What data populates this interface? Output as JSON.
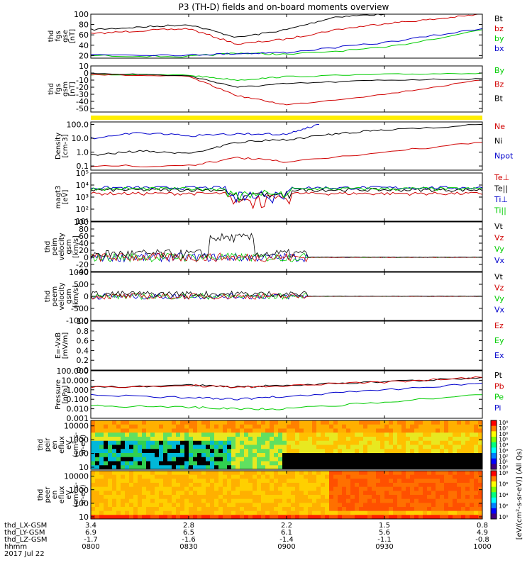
{
  "title": "P3 (TH-D) fields and on-board moments overview",
  "date_label": "2017 Jul 22",
  "panels": [
    {
      "id": "fgs-gse",
      "ylabel": [
        "thd",
        "fgs",
        "gse",
        "[nT]"
      ],
      "ticks": [
        "100",
        "80",
        "60",
        "40",
        "20"
      ],
      "legend": [
        {
          "label": "Bt",
          "color": "#000000"
        },
        {
          "label": "bz",
          "color": "#d00000"
        },
        {
          "label": "by",
          "color": "#00cc00"
        },
        {
          "label": "bx",
          "color": "#0000cc"
        }
      ]
    },
    {
      "id": "fgs-gsm",
      "ylabel": [
        "thd",
        "fgs",
        "gsm",
        "[nT]"
      ],
      "ticks": [
        "10",
        "0",
        "-10",
        "-20",
        "-30",
        "-40",
        "-50"
      ],
      "legend": [
        {
          "label": "By",
          "color": "#00cc00"
        },
        {
          "label": "Bz",
          "color": "#d00000"
        },
        {
          "label": "Bt",
          "color": "#000000"
        }
      ]
    },
    {
      "id": "density",
      "ylabel": [
        "Density",
        "[cm-3]"
      ],
      "ticks": [
        "100.0",
        "10.0",
        "1.0",
        "0.1"
      ],
      "legend": [
        {
          "label": "Ne",
          "color": "#d00000"
        },
        {
          "label": "Ni",
          "color": "#000000"
        },
        {
          "label": "Npot",
          "color": "#0000cc"
        }
      ]
    },
    {
      "id": "temperature",
      "ylabel": [
        "magt3",
        "[eV]"
      ],
      "ticks": [
        "10⁵",
        "10⁴",
        "10³",
        "10²",
        "10¹"
      ],
      "legend": [
        {
          "label": "Te⊥",
          "color": "#d00000"
        },
        {
          "label": "Te||",
          "color": "#000000"
        },
        {
          "label": "Ti⊥",
          "color": "#0000cc"
        },
        {
          "label": "Ti||",
          "color": "#00cc00"
        }
      ]
    },
    {
      "id": "ion-velocity",
      "ylabel": [
        "thd",
        "peim",
        "velocity",
        "gsm",
        "[km/s]"
      ],
      "ticks": [
        "100",
        "80",
        "60",
        "40",
        "20",
        "0",
        "-20",
        "-40"
      ],
      "legend": [
        {
          "label": "Vt",
          "color": "#000000"
        },
        {
          "label": "Vz",
          "color": "#d00000"
        },
        {
          "label": "Vy",
          "color": "#00cc00"
        },
        {
          "label": "Vx",
          "color": "#0000cc"
        }
      ]
    },
    {
      "id": "electron-velocity",
      "ylabel": [
        "thd",
        "peem",
        "velocity",
        "gsm",
        "[km/s]"
      ],
      "ticks": [
        "1000",
        "500",
        "0",
        "-500",
        "-1000"
      ],
      "legend": [
        {
          "label": "Vt",
          "color": "#000000"
        },
        {
          "label": "Vz",
          "color": "#d00000"
        },
        {
          "label": "Vy",
          "color": "#00cc00"
        },
        {
          "label": "Vx",
          "color": "#0000cc"
        }
      ]
    },
    {
      "id": "efield",
      "ylabel": [
        "E=-VxB",
        "[mV/m]"
      ],
      "ticks": [
        "1.0",
        "0.8",
        "0.6",
        "0.4",
        "0.2",
        "0.0"
      ],
      "legend": [
        {
          "label": "Ez",
          "color": "#d00000"
        },
        {
          "label": "Ey",
          "color": "#00cc00"
        },
        {
          "label": "Ex",
          "color": "#0000cc"
        }
      ]
    },
    {
      "id": "pressure",
      "ylabel": [
        "Pressure",
        "[nPa]"
      ],
      "ticks": [
        "100.000",
        "10.000",
        "1.000",
        "0.100",
        "0.010",
        "0.001"
      ],
      "legend": [
        {
          "label": "Pt",
          "color": "#000000"
        },
        {
          "label": "Pb",
          "color": "#d00000"
        },
        {
          "label": "Pe",
          "color": "#00cc00"
        },
        {
          "label": "Pi",
          "color": "#0000cc"
        }
      ]
    },
    {
      "id": "ion-spectrogram",
      "ylabel": [
        "thd",
        "peir",
        "en",
        "eflux",
        "eV",
        "(cm²-s-",
        "sr-eV)"
      ],
      "ticks": [
        "10000",
        "1000",
        "100",
        "10"
      ],
      "legend": []
    },
    {
      "id": "electron-spectrogram",
      "ylabel": [
        "thd",
        "peer",
        "en",
        "eflux",
        "eV",
        "(cm²-s-",
        "sr-eV)"
      ],
      "ticks": [
        "10000",
        "1000",
        "100",
        "10"
      ],
      "legend": []
    }
  ],
  "colorbar": {
    "label": "[eV/(cm²-s-sr-eV)] (All Qs)",
    "ticks_top": [
      "10⁸",
      "10⁷",
      "10⁶",
      "10⁵",
      "10⁴",
      "10³",
      "10²",
      "10¹",
      "10⁰"
    ],
    "ticks_bottom": [
      "10⁸",
      "10⁶",
      "10⁴",
      "10²",
      "10⁰"
    ]
  },
  "x_axis": {
    "row_labels": [
      "thd_LX-GSM",
      "thd_LY-GSM",
      "thd_LZ-GSM",
      "hhmm"
    ],
    "columns": [
      {
        "lx": "3.4",
        "ly": "6.9",
        "lz": "-1.7",
        "hhmm": "0800"
      },
      {
        "lx": "2.8",
        "ly": "6.5",
        "lz": "-1.6",
        "hhmm": "0830"
      },
      {
        "lx": "2.2",
        "ly": "6.1",
        "lz": "-1.4",
        "hhmm": "0900"
      },
      {
        "lx": "1.5",
        "ly": "5.6",
        "lz": "-1.1",
        "hhmm": "0930"
      },
      {
        "lx": "0.8",
        "ly": "4.9",
        "lz": "-0.8",
        "hhmm": "1000"
      }
    ]
  },
  "chart_data": {
    "type": "line",
    "title": "P3 (TH-D) fields and on-board moments overview",
    "xlabel": "hhmm",
    "x_ticks": [
      "0800",
      "0830",
      "0900",
      "0930",
      "1000"
    ],
    "xlim": [
      "0800",
      "1000"
    ],
    "series": [
      {
        "panel": "fgs-gse",
        "name": "Bt",
        "x": [
          "0800",
          "0815",
          "0830",
          "0845",
          "0900",
          "0915",
          "0930"
        ],
        "values": [
          70,
          75,
          80,
          55,
          70,
          95,
          100
        ]
      },
      {
        "panel": "fgs-gse",
        "name": "bz",
        "x": [
          "0800",
          "0815",
          "0830",
          "0845",
          "0900",
          "0915",
          "0930",
          "0945",
          "1000"
        ],
        "values": [
          62,
          68,
          72,
          42,
          52,
          70,
          82,
          90,
          100
        ]
      },
      {
        "panel": "fgs-gse",
        "name": "by",
        "x": [
          "0800",
          "0830",
          "0845",
          "0900",
          "0930",
          "1000"
        ],
        "values": [
          20,
          18,
          25,
          22,
          35,
          70
        ]
      },
      {
        "panel": "fgs-gse",
        "name": "bx",
        "x": [
          "0800",
          "0830",
          "0845",
          "0900",
          "0930",
          "1000"
        ],
        "values": [
          22,
          21,
          24,
          26,
          45,
          72
        ]
      },
      {
        "panel": "fgs-gsm",
        "name": "By",
        "x": [
          "0800",
          "0830",
          "0845",
          "0900",
          "0930",
          "1000"
        ],
        "values": [
          -2,
          -3,
          -10,
          -5,
          -2,
          0
        ]
      },
      {
        "panel": "fgs-gsm",
        "name": "Bz",
        "x": [
          "0800",
          "0830",
          "0845",
          "0900",
          "0930",
          "1000"
        ],
        "values": [
          -2,
          -5,
          -32,
          -45,
          -30,
          -10
        ]
      },
      {
        "panel": "fgs-gsm",
        "name": "Bt",
        "x": [
          "0800",
          "0830",
          "0845",
          "0900",
          "0930",
          "1000"
        ],
        "values": [
          0,
          -4,
          -20,
          -15,
          -10,
          -8
        ]
      },
      {
        "panel": "density",
        "name": "Ni",
        "x": [
          "0800",
          "0815",
          "0830",
          "0845",
          "0900",
          "0915",
          "0930",
          "1000"
        ],
        "values": [
          0.6,
          1.2,
          0.8,
          5,
          8,
          20,
          40,
          100
        ]
      },
      {
        "panel": "density",
        "name": "Ne",
        "x": [
          "0800",
          "0830",
          "0845",
          "0900",
          "0930",
          "1000"
        ],
        "values": [
          0.1,
          0.1,
          0.4,
          0.2,
          1.0,
          5.0
        ]
      },
      {
        "panel": "density",
        "name": "Npot",
        "x": [
          "0800",
          "0815",
          "0830",
          "0845",
          "0900",
          "0910"
        ],
        "values": [
          10,
          25,
          15,
          20,
          20,
          100
        ]
      },
      {
        "panel": "pressure",
        "name": "Pt",
        "x": [
          "0800",
          "0830",
          "0845",
          "0900",
          "0930",
          "1000"
        ],
        "values": [
          2,
          3,
          2,
          3,
          7,
          20
        ]
      },
      {
        "panel": "pressure",
        "name": "Pb",
        "x": [
          "0800",
          "0830",
          "0845",
          "0900",
          "0930",
          "1000"
        ],
        "values": [
          1.8,
          2.8,
          1.9,
          2.8,
          6.5,
          20
        ]
      },
      {
        "panel": "pressure",
        "name": "Pe",
        "x": [
          "0800",
          "0830",
          "0845",
          "0900",
          "0930",
          "1000"
        ],
        "values": [
          0.02,
          0.015,
          0.01,
          0.01,
          0.05,
          0.3
        ]
      },
      {
        "panel": "pressure",
        "name": "Pi",
        "x": [
          "0800",
          "0830",
          "0845",
          "0900",
          "0930",
          "1000"
        ],
        "values": [
          0.3,
          0.15,
          0.1,
          0.2,
          1.0,
          5.0
        ]
      }
    ]
  }
}
